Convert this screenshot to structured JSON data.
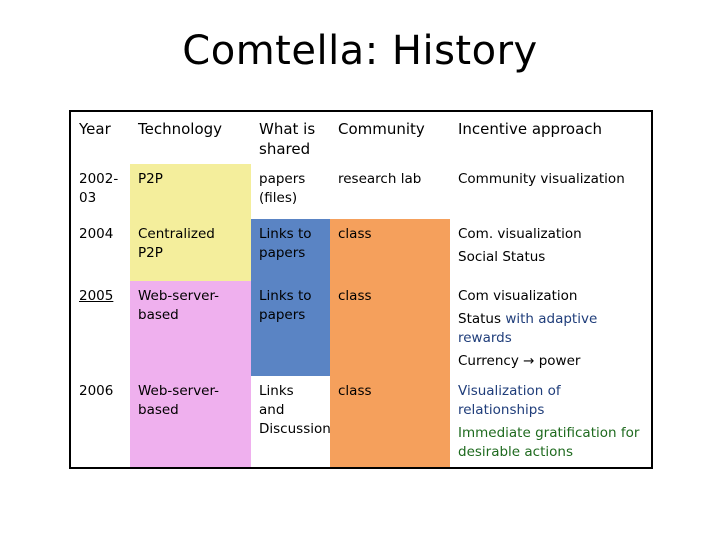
{
  "slide": {
    "title": "Comtella: History"
  },
  "table": {
    "headers": [
      "Year",
      "Technology",
      "What is shared",
      "Community",
      "Incentive approach"
    ],
    "rows": [
      {
        "year": "2002-03",
        "technology": "P2P",
        "shared": "papers (files)",
        "community": "research lab",
        "incentive": [
          "Community visualization"
        ]
      },
      {
        "year": "2004",
        "technology": "Centralized P2P",
        "shared": "Links to papers",
        "community": "class",
        "incentive": [
          "Com. visualization",
          "Social Status"
        ]
      },
      {
        "year": "2005",
        "technology": "Web-server-based",
        "shared": "Links to papers",
        "community": "class",
        "incentive_lines": {
          "l1": "Com visualization",
          "l2_a": "Status ",
          "l2_b": "with adaptive rewards",
          "l3_a": "Currency ",
          "l3_arrow": "→",
          "l3_b": " power"
        }
      },
      {
        "year": "2006",
        "technology": "Web-server-based",
        "shared": "Links and Discussion",
        "community": "class",
        "incentive": [
          "Visualization of relationships",
          "Immediate gratification for desirable actions"
        ]
      }
    ]
  },
  "colors": {
    "yellow": "#f4ee9c",
    "pink": "#efb0ee",
    "blue": "#5a84c4",
    "orange": "#f5a05c",
    "green": "#a6cf57"
  }
}
